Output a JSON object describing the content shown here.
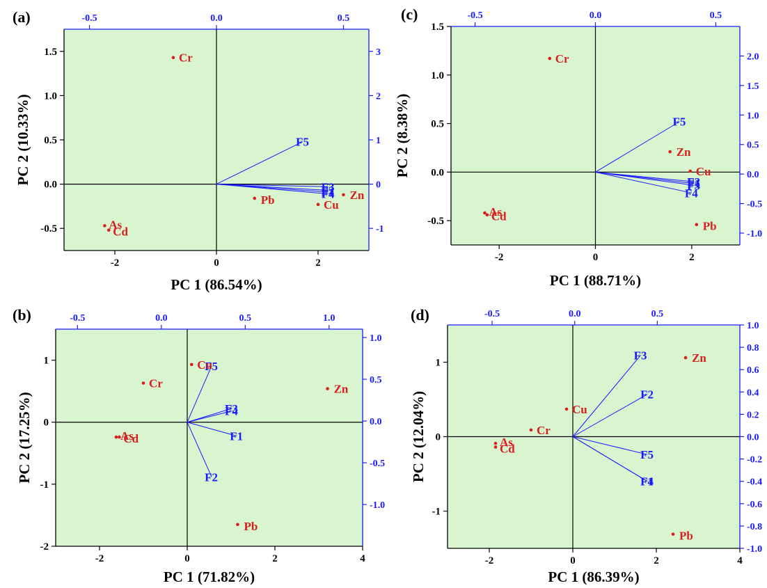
{
  "colors": {
    "plot_bg": "#d9f5d0",
    "score_color": "#d81e1e",
    "loading_color": "#1a1aff",
    "axis_color": "#000000",
    "secondary_axis_color": "#1a1aff"
  },
  "chart_data": [
    {
      "type": "scatter",
      "panel": "(a)",
      "xlabel": "PC 1 (86.54%)",
      "ylabel": "PC 2 (10.33%)",
      "xlim": [
        -3,
        3
      ],
      "ylim": [
        -0.75,
        1.75
      ],
      "xticks": [
        -2,
        0,
        2
      ],
      "yticks": [
        -0.5,
        0.0,
        0.5,
        1.0,
        1.5
      ],
      "xticks_top": [
        -0.5,
        0.0,
        0.5
      ],
      "yticks_right": [
        -1,
        0,
        1,
        2,
        3
      ],
      "xlim_top": [
        -0.6,
        0.6
      ],
      "ylim_right": [
        -1.5,
        3.5
      ],
      "scores": [
        {
          "label": "Cr",
          "x": -0.85,
          "y": 1.43
        },
        {
          "label": "As",
          "x": -2.2,
          "y": -0.47
        },
        {
          "label": "Cd",
          "x": -2.12,
          "y": -0.52
        },
        {
          "label": "Pb",
          "x": 0.75,
          "y": -0.16
        },
        {
          "label": "Cu",
          "x": 2.0,
          "y": -0.23
        },
        {
          "label": "Zn",
          "x": 2.5,
          "y": -0.12
        }
      ],
      "loadings": [
        {
          "label": "F5",
          "x": 0.34,
          "y": 0.96
        },
        {
          "label": "F3",
          "x": 0.44,
          "y": -0.06
        },
        {
          "label": "F2",
          "x": 0.44,
          "y": -0.14
        },
        {
          "label": "F1",
          "x": 0.44,
          "y": -0.18
        },
        {
          "label": "F4",
          "x": 0.44,
          "y": -0.22
        }
      ]
    },
    {
      "type": "scatter",
      "panel": "(b)",
      "xlabel": "PC 1 (71.82%)",
      "ylabel": "PC 2 (17.25%)",
      "xlim": [
        -3,
        4
      ],
      "ylim": [
        -2,
        1.5
      ],
      "xticks": [
        -2,
        0,
        2,
        4
      ],
      "yticks": [
        -2,
        -1,
        0,
        1
      ],
      "xticks_top": [
        -0.5,
        0.0,
        0.5,
        1.0
      ],
      "yticks_right": [
        -1.0,
        -0.5,
        0.0,
        0.5,
        1.0
      ],
      "xlim_top": [
        -0.63,
        1.2
      ],
      "ylim_right": [
        -1.5,
        1.1
      ],
      "scores": [
        {
          "label": "Cu",
          "x": 0.1,
          "y": 0.93
        },
        {
          "label": "Cr",
          "x": -1.0,
          "y": 0.63
        },
        {
          "label": "As",
          "x": -1.62,
          "y": -0.24
        },
        {
          "label": "Cd",
          "x": -1.55,
          "y": -0.24
        },
        {
          "label": "Zn",
          "x": 3.2,
          "y": 0.54
        },
        {
          "label": "Pb",
          "x": 1.15,
          "y": -1.65
        }
      ],
      "loadings": [
        {
          "label": "F5",
          "x": 0.3,
          "y": 0.66
        },
        {
          "label": "F3",
          "x": 0.42,
          "y": 0.15
        },
        {
          "label": "F4",
          "x": 0.42,
          "y": 0.12
        },
        {
          "label": "F1",
          "x": 0.45,
          "y": -0.18
        },
        {
          "label": "F2",
          "x": 0.3,
          "y": -0.67
        }
      ]
    },
    {
      "type": "scatter",
      "panel": "(c)",
      "xlabel": "PC 1 (88.71%)",
      "ylabel": "PC 2 (8.38%)",
      "xlim": [
        -3,
        3
      ],
      "ylim": [
        -0.75,
        1.5
      ],
      "xticks": [
        -2,
        0,
        2
      ],
      "yticks": [
        -0.5,
        0.0,
        0.5,
        1.0,
        1.5
      ],
      "xticks_top": [
        -0.5,
        0.0,
        0.5
      ],
      "yticks_right": [
        -1.0,
        -0.5,
        0.0,
        0.5,
        1.0,
        1.5,
        2.0
      ],
      "xlim_top": [
        -0.6,
        0.6
      ],
      "ylim_right": [
        -1.2,
        2.5
      ],
      "scores": [
        {
          "label": "Cr",
          "x": -0.95,
          "y": 1.17
        },
        {
          "label": "Zn",
          "x": 1.55,
          "y": 0.21
        },
        {
          "label": "Cu",
          "x": 1.97,
          "y": 0.01
        },
        {
          "label": "As",
          "x": -2.3,
          "y": -0.42
        },
        {
          "label": "Cd",
          "x": -2.25,
          "y": -0.44
        },
        {
          "label": "Pb",
          "x": 2.1,
          "y": -0.54
        }
      ],
      "loadings": [
        {
          "label": "F5",
          "x": 0.35,
          "y": 0.89
        },
        {
          "label": "F2",
          "x": 0.41,
          "y": -0.13
        },
        {
          "label": "F1",
          "x": 0.41,
          "y": -0.16
        },
        {
          "label": "F3",
          "x": 0.41,
          "y": -0.19
        },
        {
          "label": "F4",
          "x": 0.4,
          "y": -0.32
        }
      ]
    },
    {
      "type": "scatter",
      "panel": "(d)",
      "xlabel": "PC 1 (86.39%)",
      "ylabel": "PC 2 (12.04%)",
      "xlim": [
        -3,
        4
      ],
      "ylim": [
        -1.5,
        1.5
      ],
      "xticks": [
        -2,
        0,
        2,
        4
      ],
      "yticks": [
        -1,
        0,
        1
      ],
      "xticks_top": [
        -0.5,
        0.0,
        0.5
      ],
      "yticks_right": [
        -1.0,
        -0.8,
        -0.6,
        -0.4,
        -0.2,
        0.0,
        0.2,
        0.4,
        0.6,
        0.8,
        1.0
      ],
      "xlim_top": [
        -0.77,
        1.0
      ],
      "ylim_right": [
        -1.0,
        1.0
      ],
      "scores": [
        {
          "label": "Zn",
          "x": 2.7,
          "y": 1.06
        },
        {
          "label": "Cu",
          "x": -0.15,
          "y": 0.37
        },
        {
          "label": "Cr",
          "x": -1.0,
          "y": 0.09
        },
        {
          "label": "As",
          "x": -1.85,
          "y": -0.09
        },
        {
          "label": "Cd",
          "x": -1.85,
          "y": -0.14
        },
        {
          "label": "Pb",
          "x": 2.4,
          "y": -1.31
        }
      ],
      "loadings": [
        {
          "label": "F3",
          "x": 0.4,
          "y": 0.73
        },
        {
          "label": "F2",
          "x": 0.44,
          "y": 0.38
        },
        {
          "label": "F5",
          "x": 0.44,
          "y": -0.16
        },
        {
          "label": "F1",
          "x": 0.44,
          "y": -0.4
        },
        {
          "label": "F4",
          "x": 0.44,
          "y": -0.4
        }
      ]
    }
  ]
}
